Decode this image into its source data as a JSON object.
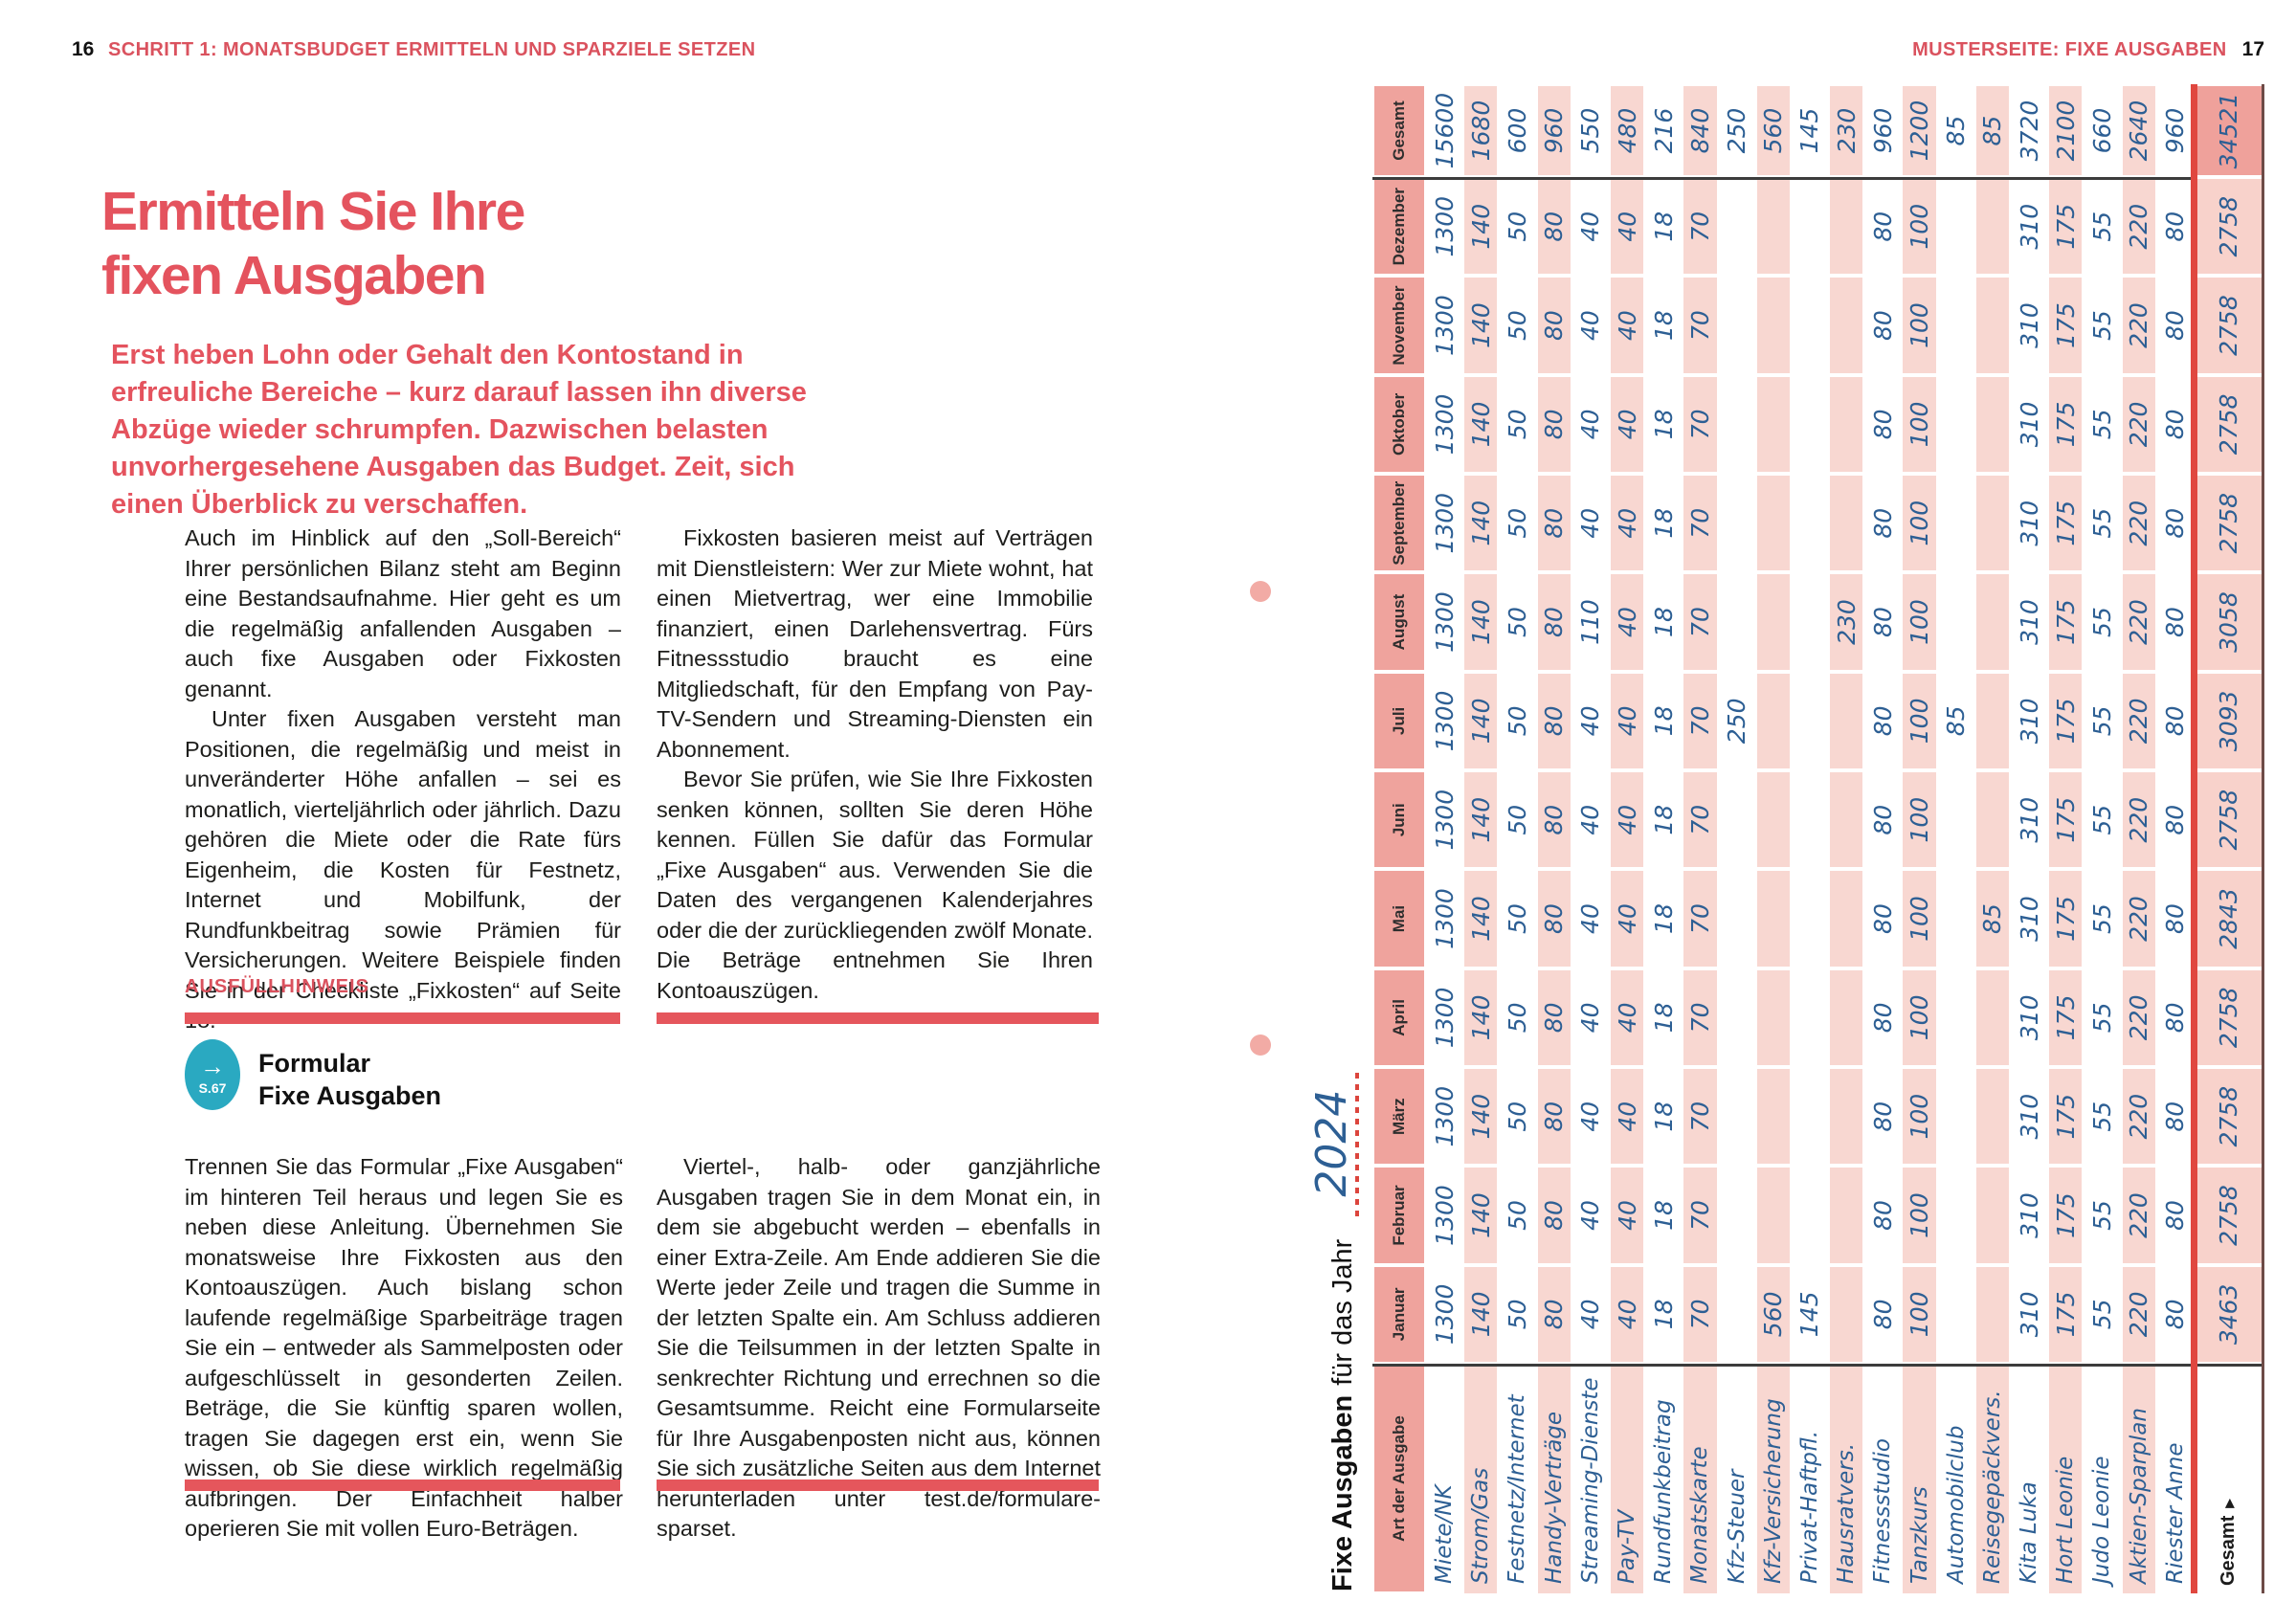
{
  "header": {
    "left_page_number": "16",
    "left_kicker": "SCHRITT 1: MONATSBUDGET ERMITTELN UND SPARZIELE SETZEN",
    "right_kicker": "MUSTERSEITE: FIXE AUSGABEN",
    "right_page_number": "17"
  },
  "colors": {
    "accent_red": "#e4535e",
    "table_line_red": "#e0473f",
    "header_cell_salmon": "#efa39d",
    "row_pink": "#f8d7d1",
    "handwriting_blue": "#2d5f94",
    "badge_teal": "#2aa9c1"
  },
  "article": {
    "title_line1": "Ermitteln Sie Ihre",
    "title_line2": "fixen Ausgaben",
    "lead": "Erst heben Lohn oder Gehalt den Kontostand in erfreuliche Bereiche – kurz darauf lassen ihn diverse Abzüge wieder schrumpfen. Dazwischen belasten unvorhergesehene Ausgaben das Budget. Zeit, sich einen Überblick zu verschaffen.",
    "body_top": {
      "col1": [
        "Auch im Hinblick auf den „Soll-Bereich“ Ihrer persönlichen Bilanz steht am Beginn eine Bestandsaufnahme. Hier geht es um die regelmäßig anfallenden Ausgaben – auch fixe Ausgaben oder Fixkosten genannt.",
        "Unter fixen Ausgaben versteht man Positionen, die regelmäßig und meist in unveränderter Höhe anfallen – sei es monatlich, vierteljährlich oder jährlich. Dazu gehören die Miete oder die Rate fürs Eigenheim, die Kosten für Festnetz, Internet und Mobilfunk, der Rundfunkbeitrag sowie Prämien für Versicherungen. Weitere Beispiele finden Sie in der Checkliste „Fixkosten“ auf Seite 18."
      ],
      "col2": [
        "Fixkosten basieren meist auf Verträgen mit Dienstleistern: Wer zur Miete wohnt, hat einen Mietvertrag, wer eine Immobilie finanziert, einen Darlehensvertrag. Fürs Fitnessstudio braucht es eine Mitgliedschaft, für den Empfang von Pay-TV-Sendern und Streaming-Diensten ein Abonnement.",
        "Bevor Sie prüfen, wie Sie Ihre Fixkosten senken können, sollten Sie deren Höhe kennen. Füllen Sie dafür das Formular „Fixe Ausgaben“ aus. Verwenden Sie die Daten des vergangenen Kalenderjahres oder die der zurückliegenden zwölf Monate. Die Beträge entnehmen Sie Ihren Kontoauszügen."
      ]
    },
    "hint_label": "AUSFÜLLHINWEIS",
    "form_ref": {
      "arrow": "→",
      "page": "S.67",
      "line1": "Formular",
      "line2": "Fixe Ausgaben"
    },
    "body_bottom": {
      "col1": [
        "Trennen Sie das Formular „Fixe Ausgaben“ im hinteren Teil heraus und legen Sie es neben diese Anleitung. Übernehmen Sie monatsweise Ihre Fixkosten aus den Kontoauszügen. Auch bislang schon laufende regelmäßige Sparbeiträge tragen Sie ein – entweder als Sammelposten oder aufgeschlüsselt in gesonderten Zeilen. Beträge, die Sie künftig sparen wollen, tragen Sie dagegen erst ein, wenn Sie wissen, ob Sie diese wirklich regelmäßig aufbringen. Der Einfachheit halber operieren Sie mit vollen Euro-Beträgen."
      ],
      "col2": [
        "Viertel-, halb- oder ganzjährliche Ausgaben tragen Sie in dem Monat ein, in dem sie abgebucht werden – ebenfalls in einer Extra-Zeile. Am Ende addieren Sie die Werte jeder Zeile und tragen die Summe in der letzten Spalte ein. Am Schluss addieren Sie die Teilsummen in der letzten Spalte in senkrechter Richtung und errechnen so die Gesamtsumme. Reicht eine Formularseite für Ihre Ausgabenposten nicht aus, können Sie sich zusätzliche Seiten aus dem Internet herunterladen unter test.de/formulare-sparset."
      ]
    }
  },
  "table": {
    "title_bold": "Fixe Ausgaben",
    "title_rest": "für das Jahr",
    "year": "2024",
    "col_header_label": "Art der Ausgabe",
    "months": [
      "Januar",
      "Februar",
      "März",
      "April",
      "Mai",
      "Juni",
      "Juli",
      "August",
      "September",
      "Oktober",
      "November",
      "Dezember"
    ],
    "gesamt_label": "Gesamt",
    "rows": [
      {
        "label": "Miete/NK",
        "values": [
          1300,
          1300,
          1300,
          1300,
          1300,
          1300,
          1300,
          1300,
          1300,
          1300,
          1300,
          1300
        ],
        "total": 15600
      },
      {
        "label": "Strom/Gas",
        "values": [
          140,
          140,
          140,
          140,
          140,
          140,
          140,
          140,
          140,
          140,
          140,
          140
        ],
        "total": 1680
      },
      {
        "label": "Festnetz/Internet",
        "values": [
          50,
          50,
          50,
          50,
          50,
          50,
          50,
          50,
          50,
          50,
          50,
          50
        ],
        "total": 600
      },
      {
        "label": "Handy-Verträge",
        "values": [
          80,
          80,
          80,
          80,
          80,
          80,
          80,
          80,
          80,
          80,
          80,
          80
        ],
        "total": 960
      },
      {
        "label": "Streaming-Dienste",
        "values": [
          40,
          40,
          40,
          40,
          40,
          40,
          40,
          110,
          40,
          40,
          40,
          40
        ],
        "total": 550
      },
      {
        "label": "Pay-TV",
        "values": [
          40,
          40,
          40,
          40,
          40,
          40,
          40,
          40,
          40,
          40,
          40,
          40
        ],
        "total": 480
      },
      {
        "label": "Rundfunkbeitrag",
        "values": [
          18,
          18,
          18,
          18,
          18,
          18,
          18,
          18,
          18,
          18,
          18,
          18
        ],
        "total": 216
      },
      {
        "label": "Monatskarte",
        "values": [
          70,
          70,
          70,
          70,
          70,
          70,
          70,
          70,
          70,
          70,
          70,
          70
        ],
        "total": 840
      },
      {
        "label": "Kfz-Steuer",
        "values": [
          "",
          "",
          "",
          "",
          "",
          "",
          250,
          "",
          "",
          "",
          "",
          ""
        ],
        "total": 250
      },
      {
        "label": "Kfz-Versicherung",
        "values": [
          560,
          "",
          "",
          "",
          "",
          "",
          "",
          "",
          "",
          "",
          "",
          ""
        ],
        "total": 560
      },
      {
        "label": "Privat-Haftpfl.",
        "values": [
          145,
          "",
          "",
          "",
          "",
          "",
          "",
          "",
          "",
          "",
          "",
          ""
        ],
        "total": 145
      },
      {
        "label": "Hausratvers.",
        "values": [
          "",
          "",
          "",
          "",
          "",
          "",
          "",
          230,
          "",
          "",
          "",
          ""
        ],
        "total": 230
      },
      {
        "label": "Fitnessstudio",
        "values": [
          80,
          80,
          80,
          80,
          80,
          80,
          80,
          80,
          80,
          80,
          80,
          80
        ],
        "total": 960
      },
      {
        "label": "Tanzkurs",
        "values": [
          100,
          100,
          100,
          100,
          100,
          100,
          100,
          100,
          100,
          100,
          100,
          100
        ],
        "total": 1200
      },
      {
        "label": "Automobilclub",
        "values": [
          "",
          "",
          "",
          "",
          "",
          "",
          85,
          "",
          "",
          "",
          "",
          ""
        ],
        "total": 85
      },
      {
        "label": "Reisegepäckvers.",
        "values": [
          "",
          "",
          "",
          "",
          85,
          "",
          "",
          "",
          "",
          "",
          "",
          ""
        ],
        "total": 85
      },
      {
        "label": "Kita Luka",
        "values": [
          310,
          310,
          310,
          310,
          310,
          310,
          310,
          310,
          310,
          310,
          310,
          310
        ],
        "total": 3720
      },
      {
        "label": "Hort Leonie",
        "values": [
          175,
          175,
          175,
          175,
          175,
          175,
          175,
          175,
          175,
          175,
          175,
          175
        ],
        "total": 2100
      },
      {
        "label": "Judo Leonie",
        "values": [
          55,
          55,
          55,
          55,
          55,
          55,
          55,
          55,
          55,
          55,
          55,
          55
        ],
        "total": 660
      },
      {
        "label": "Aktien-Sparplan",
        "values": [
          220,
          220,
          220,
          220,
          220,
          220,
          220,
          220,
          220,
          220,
          220,
          220
        ],
        "total": 2640
      },
      {
        "label": "Riester Anne",
        "values": [
          80,
          80,
          80,
          80,
          80,
          80,
          80,
          80,
          80,
          80,
          80,
          80
        ],
        "total": 960
      }
    ],
    "totals_label": "Gesamt",
    "totals_arrow": "▶",
    "monthly_totals": [
      3463,
      2758,
      2758,
      2758,
      2843,
      2758,
      3093,
      3058,
      2758,
      2758,
      2758,
      2758
    ],
    "grand_total": 34521
  }
}
